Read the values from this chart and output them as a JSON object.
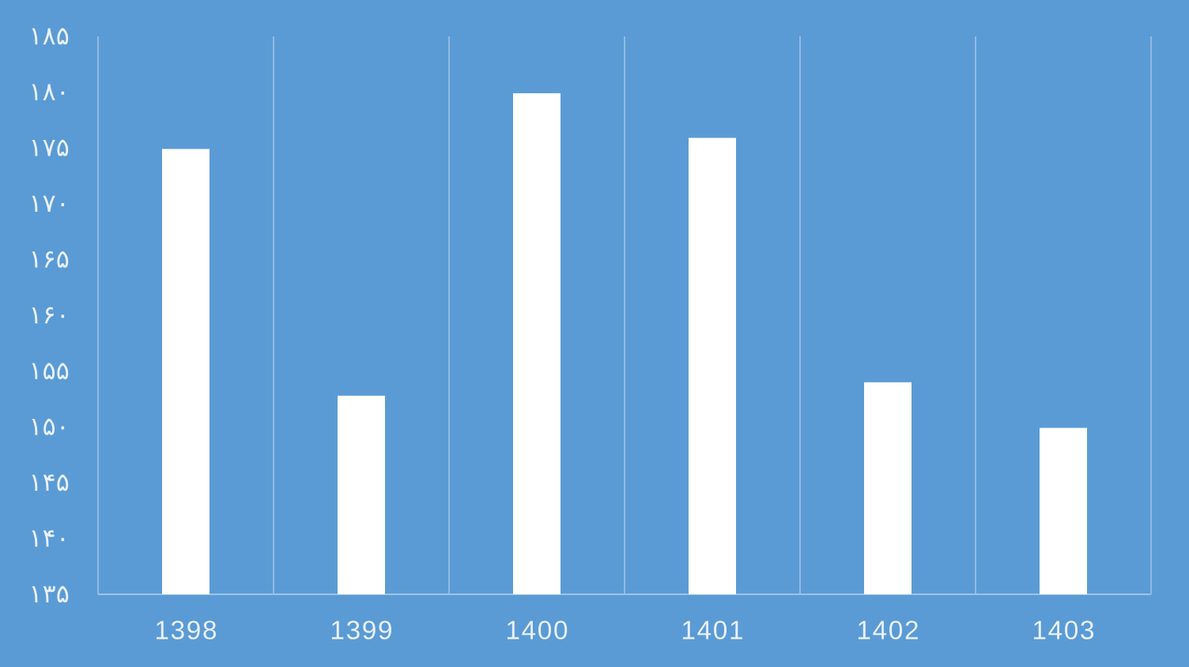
{
  "chart_data": {
    "type": "bar",
    "categories": [
      "1398",
      "1399",
      "1400",
      "1401",
      "1402",
      "1403"
    ],
    "values": [
      174.9,
      152.8,
      179.9,
      175.9,
      154.0,
      149.9
    ],
    "color": "#ffffff",
    "ylim": [
      135,
      185
    ],
    "yticks": [
      {
        "value": 135,
        "label": "۱۳۵"
      },
      {
        "value": 140,
        "label": "۱۴۰"
      },
      {
        "value": 145,
        "label": "۱۴۵"
      },
      {
        "value": 150,
        "label": "۱۵۰"
      },
      {
        "value": 155,
        "label": "۱۵۵"
      },
      {
        "value": 160,
        "label": "۱۶۰"
      },
      {
        "value": 165,
        "label": "۱۶۵"
      },
      {
        "value": 170,
        "label": "۱۷۰"
      },
      {
        "value": 175,
        "label": "۱۷۵"
      },
      {
        "value": 180,
        "label": "۱۸۰"
      },
      {
        "value": 185,
        "label": "۱۸۵"
      }
    ],
    "grid": "x"
  }
}
